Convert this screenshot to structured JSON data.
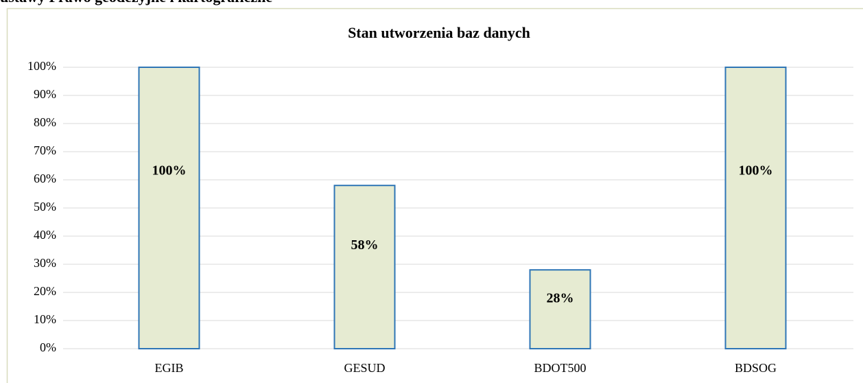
{
  "heading": "ustawy Prawo geodezyjne i kartograficzne",
  "chart_data": {
    "type": "bar",
    "title": "Stan utworzenia baz danych",
    "categories": [
      "EGIB",
      "GESUD",
      "BDOT500",
      "BDSOG"
    ],
    "values": [
      100,
      58,
      28,
      100
    ],
    "value_labels": [
      "100%",
      "58%",
      "28%",
      "100%"
    ],
    "color": "#e6ebd2",
    "edge_color": "#2e75b6",
    "ylim": [
      0,
      100
    ],
    "yticks": [
      {
        "value": 0,
        "label": "0%"
      },
      {
        "value": 10,
        "label": "10%"
      },
      {
        "value": 20,
        "label": "20%"
      },
      {
        "value": 30,
        "label": "30%"
      },
      {
        "value": 40,
        "label": "40%"
      },
      {
        "value": 50,
        "label": "50%"
      },
      {
        "value": 60,
        "label": "60%"
      },
      {
        "value": 70,
        "label": "70%"
      },
      {
        "value": 80,
        "label": "80%"
      },
      {
        "value": 90,
        "label": "90%"
      },
      {
        "value": 100,
        "label": "100%"
      }
    ],
    "grid": true
  }
}
